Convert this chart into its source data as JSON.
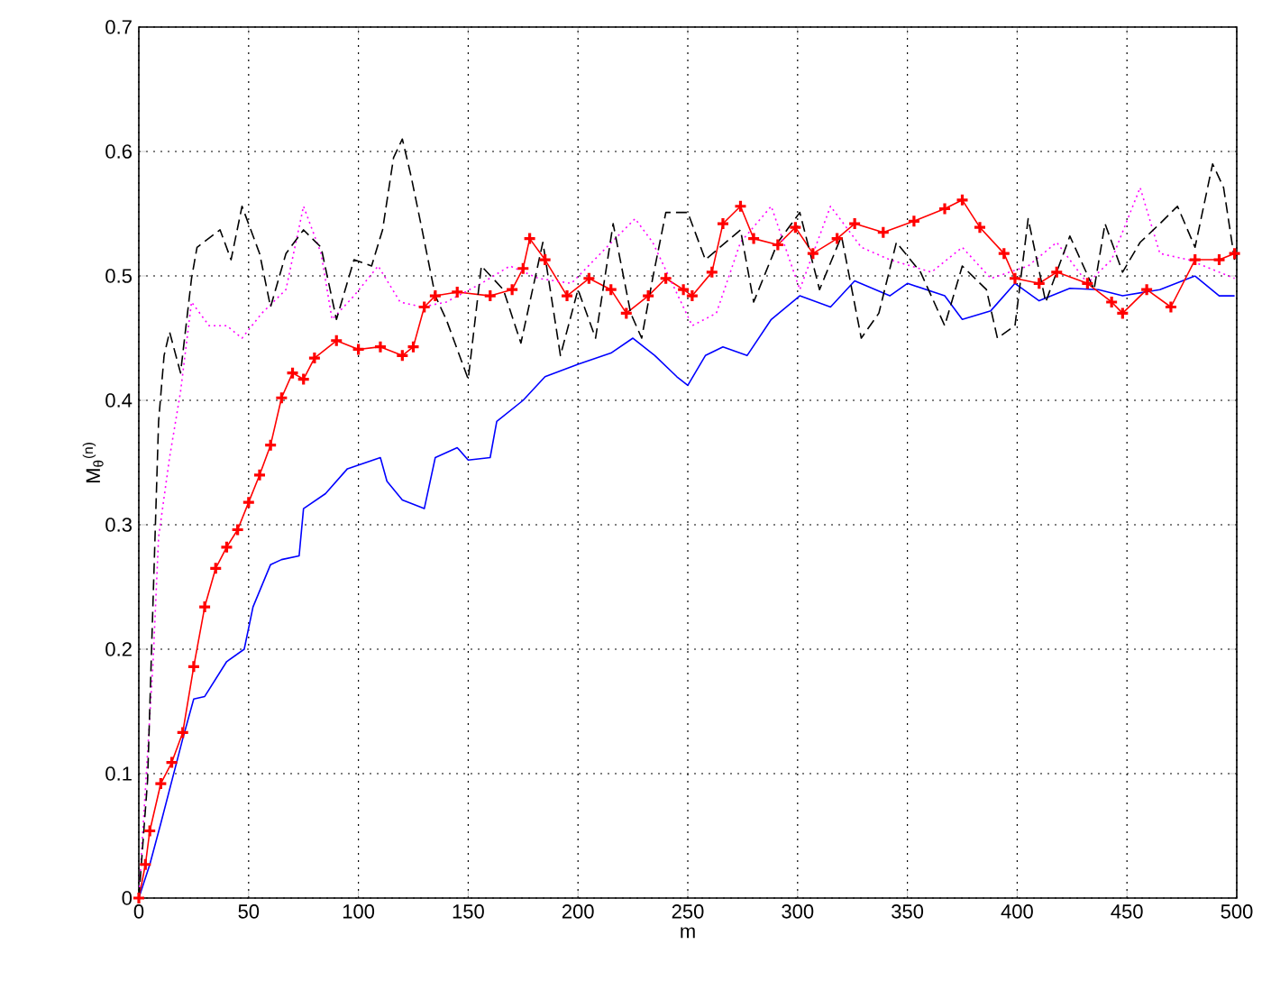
{
  "chart_data": {
    "type": "line",
    "xlabel": "m",
    "ylabel": "M$_{θ}$$^{(n)}$",
    "xlim": [
      0,
      500
    ],
    "ylim": [
      0,
      0.7
    ],
    "xticks": [
      0,
      50,
      100,
      150,
      200,
      250,
      300,
      350,
      400,
      450,
      500
    ],
    "yticks": [
      0,
      0.1,
      0.2,
      0.3,
      0.4,
      0.5,
      0.6,
      0.7
    ],
    "grid": true,
    "series": [
      {
        "color": "#0000ff",
        "line_style": "solid",
        "marker": "none",
        "x": [
          0,
          5,
          10,
          20,
          25,
          30,
          40,
          48,
          52,
          60,
          65,
          73,
          75,
          85,
          95,
          110,
          113,
          120,
          130,
          135,
          145,
          150,
          160,
          163,
          175,
          185,
          200,
          215,
          225,
          235,
          245,
          250,
          258,
          266,
          277,
          288,
          301,
          315,
          326,
          342,
          350,
          367,
          375,
          388,
          399,
          410,
          424,
          437,
          448,
          465,
          481,
          492,
          499
        ],
        "values": [
          0,
          0.027,
          0.06,
          0.128,
          0.16,
          0.162,
          0.19,
          0.2,
          0.234,
          0.268,
          0.272,
          0.275,
          0.313,
          0.325,
          0.345,
          0.354,
          0.335,
          0.32,
          0.313,
          0.354,
          0.362,
          0.352,
          0.354,
          0.383,
          0.4,
          0.419,
          0.429,
          0.438,
          0.45,
          0.436,
          0.419,
          0.412,
          0.436,
          0.443,
          0.436,
          0.465,
          0.484,
          0.475,
          0.496,
          0.484,
          0.494,
          0.484,
          0.465,
          0.472,
          0.494,
          0.48,
          0.49,
          0.489,
          0.484,
          0.489,
          0.5,
          0.484,
          0.484
        ]
      },
      {
        "color": "#ff0000",
        "line_style": "solid",
        "marker": "cross",
        "x": [
          0,
          3,
          5,
          10,
          15,
          20,
          25,
          30,
          35,
          40,
          45,
          50,
          55,
          60,
          65,
          70,
          75,
          80,
          90,
          100,
          110,
          120,
          125,
          130,
          135,
          145,
          160,
          170,
          175,
          178,
          185,
          195,
          205,
          215,
          222,
          232,
          240,
          248,
          252,
          261,
          266,
          274,
          280,
          291,
          299,
          307,
          318,
          326,
          339,
          353,
          367,
          375,
          383,
          394,
          399,
          410,
          418,
          432,
          443,
          448,
          459,
          470,
          481,
          492,
          499
        ],
        "values": [
          0,
          0.027,
          0.054,
          0.092,
          0.109,
          0.133,
          0.186,
          0.234,
          0.265,
          0.282,
          0.296,
          0.318,
          0.34,
          0.364,
          0.402,
          0.422,
          0.417,
          0.434,
          0.448,
          0.441,
          0.443,
          0.436,
          0.443,
          0.475,
          0.484,
          0.487,
          0.484,
          0.489,
          0.506,
          0.53,
          0.513,
          0.484,
          0.498,
          0.489,
          0.47,
          0.484,
          0.498,
          0.489,
          0.484,
          0.503,
          0.542,
          0.556,
          0.53,
          0.525,
          0.539,
          0.518,
          0.53,
          0.542,
          0.535,
          0.544,
          0.554,
          0.561,
          0.539,
          0.518,
          0.498,
          0.494,
          0.503,
          0.494,
          0.479,
          0.47,
          0.489,
          0.475,
          0.513,
          0.513,
          0.518
        ]
      },
      {
        "color": "#ff00ff",
        "line_style": "dotted",
        "marker": "none",
        "x": [
          0,
          6.5,
          9,
          14,
          19,
          24,
          32,
          40,
          47,
          56,
          67,
          75,
          83,
          88,
          98,
          109,
          119,
          129,
          140,
          156,
          169,
          182,
          197,
          213,
          226,
          234,
          252,
          263,
          274,
          288,
          301,
          315,
          329,
          342,
          361,
          375,
          388,
          405,
          418,
          432,
          443,
          456,
          465,
          478,
          492,
          499
        ],
        "values": [
          0,
          0.19,
          0.29,
          0.354,
          0.407,
          0.479,
          0.46,
          0.46,
          0.45,
          0.47,
          0.489,
          0.556,
          0.518,
          0.465,
          0.484,
          0.508,
          0.479,
          0.475,
          0.479,
          0.494,
          0.508,
          0.498,
          0.494,
          0.523,
          0.546,
          0.527,
          0.46,
          0.47,
          0.527,
          0.556,
          0.489,
          0.556,
          0.523,
          0.513,
          0.503,
          0.523,
          0.498,
          0.508,
          0.527,
          0.494,
          0.513,
          0.571,
          0.518,
          0.513,
          0.503,
          0.498
        ]
      },
      {
        "color": "#000000",
        "line_style": "dashed",
        "marker": "none",
        "x": [
          0,
          4,
          6.5,
          9,
          11.5,
          14,
          19,
          24,
          26.5,
          37,
          42,
          47,
          55,
          60,
          67,
          75,
          83,
          90,
          98,
          106,
          111,
          116,
          120,
          124,
          129,
          135,
          140,
          150,
          156,
          166,
          174,
          184,
          192,
          200,
          208,
          216,
          224,
          229,
          234,
          240,
          250,
          258,
          274,
          280,
          291,
          301,
          310,
          320,
          329,
          337,
          345,
          356,
          367,
          375,
          386,
          391,
          399,
          405,
          413,
          424,
          435,
          440,
          448,
          456,
          465,
          473,
          481,
          489,
          494,
          499
        ],
        "values": [
          0,
          0.095,
          0.24,
          0.383,
          0.436,
          0.455,
          0.422,
          0.498,
          0.523,
          0.537,
          0.513,
          0.556,
          0.518,
          0.475,
          0.518,
          0.537,
          0.523,
          0.465,
          0.513,
          0.508,
          0.537,
          0.595,
          0.61,
          0.58,
          0.537,
          0.484,
          0.465,
          0.417,
          0.508,
          0.489,
          0.446,
          0.527,
          0.436,
          0.489,
          0.45,
          0.542,
          0.47,
          0.45,
          0.498,
          0.551,
          0.551,
          0.513,
          0.537,
          0.479,
          0.527,
          0.551,
          0.489,
          0.532,
          0.45,
          0.47,
          0.527,
          0.503,
          0.46,
          0.508,
          0.489,
          0.45,
          0.46,
          0.546,
          0.479,
          0.532,
          0.489,
          0.542,
          0.503,
          0.527,
          0.542,
          0.556,
          0.523,
          0.59,
          0.571,
          0.513
        ]
      }
    ]
  }
}
